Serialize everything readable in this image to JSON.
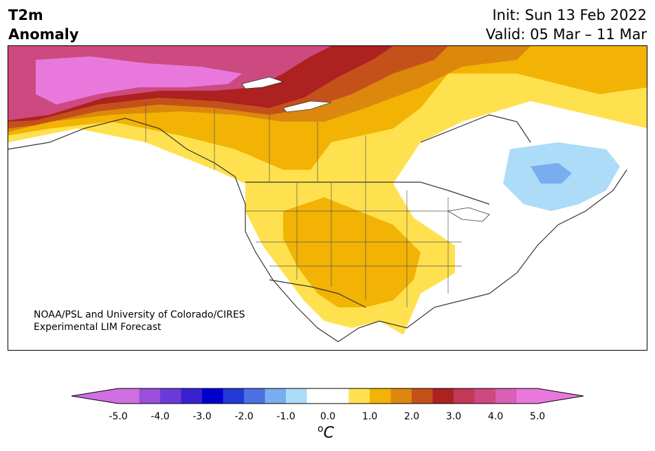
{
  "title": {
    "line1": "T2m",
    "line2": "Anomaly"
  },
  "info": {
    "init": "Init: Sun 13 Feb 2022",
    "valid": "Valid: 05 Mar – 11 Mar"
  },
  "credit": {
    "line1": "NOAA/PSL and University of Colorado/CIRES",
    "line2": "Experimental LIM Forecast"
  },
  "colorbar": {
    "unit_sup": "o",
    "unit": "C",
    "ticks": [
      "-5.0",
      "-4.0",
      "-3.0",
      "-2.0",
      "-1.0",
      "0.0",
      "1.0",
      "2.0",
      "3.0",
      "4.0",
      "5.0"
    ],
    "colors": [
      "#cf6fe3",
      "#9b4fdc",
      "#6b39d9",
      "#3a1fd1",
      "#0000cd",
      "#2238d8",
      "#4a70e3",
      "#78aef0",
      "#acdcf7",
      "#ffffff",
      "#ffffff",
      "#ffe14f",
      "#f2b305",
      "#dc880d",
      "#c5511a",
      "#ad2121",
      "#c33857",
      "#cc4a7f",
      "#d860b5",
      "#e878dc"
    ]
  }
}
